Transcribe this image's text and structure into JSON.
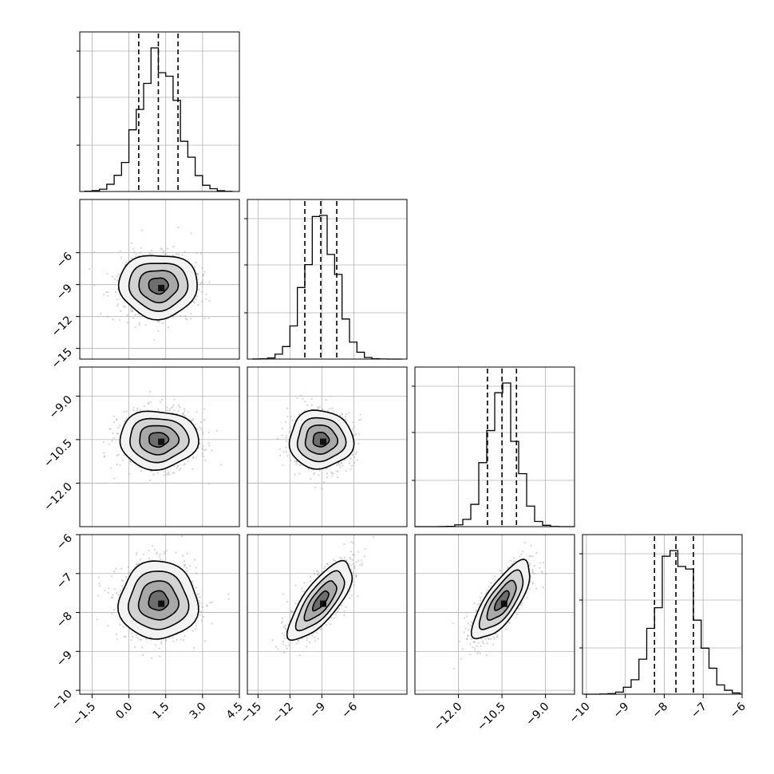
{
  "chart_data": {
    "type": "corner",
    "grid": true,
    "n_params": 4,
    "params": [
      {
        "name": "",
        "range": [
          -2.0,
          4.5
        ],
        "ticks": [
          -1.5,
          0.0,
          1.5,
          3.0,
          4.5
        ],
        "tick_labels": [
          "−1.5",
          "0.0",
          "1.5",
          "3.0",
          "4.5"
        ],
        "quantiles": [
          0.4,
          1.2,
          2.0
        ],
        "hist_mean": 1.2,
        "hist_sd": 0.8,
        "hist_edges_start": -1.8,
        "hist_bin_width": 0.3,
        "hist_bins": 20
      },
      {
        "name": "",
        "range": [
          -16.0,
          -1.0
        ],
        "ticks": [
          -15,
          -12,
          -9,
          -6
        ],
        "tick_labels": [
          "−15",
          "−12",
          "−9",
          "−6"
        ],
        "quantiles": [
          -10.6,
          -9.1,
          -7.6
        ],
        "hist_mean": -9.1,
        "hist_sd": 1.5,
        "hist_edges_start": -15.5,
        "hist_bin_width": 0.7,
        "hist_bins": 20
      },
      {
        "name": "",
        "range": [
          -13.5,
          -8.0
        ],
        "ticks": [
          -12.0,
          -10.5,
          -9.0
        ],
        "tick_labels": [
          "−12.0",
          "−10.5",
          "−9.0"
        ],
        "quantiles": [
          -11.0,
          -10.5,
          -10.0
        ],
        "hist_mean": -10.5,
        "hist_sd": 0.5,
        "hist_edges_start": -13.5,
        "hist_bin_width": 0.275,
        "hist_bins": 20
      },
      {
        "name": "",
        "range": [
          -10.1,
          -6.0
        ],
        "ticks": [
          -10,
          -9,
          -8,
          -7,
          -6
        ],
        "tick_labels": [
          "−10",
          "−9",
          "−8",
          "−7",
          "−6"
        ],
        "quantiles": [
          -8.25,
          -7.7,
          -7.25
        ],
        "hist_mean": -7.7,
        "hist_sd": 0.5,
        "hist_edges_start": -10.05,
        "hist_bin_width": 0.2,
        "hist_bins": 20
      }
    ],
    "row_axis_ticks": {
      "1": {
        "ticks": [
          -15,
          -12,
          -9,
          -6
        ],
        "labels": [
          "−15",
          "−12",
          "−9",
          "−6"
        ]
      },
      "2": {
        "ticks": [
          -12.0,
          -10.5,
          -9.0
        ],
        "labels": [
          "−12.0",
          "−10.5",
          "−9.0"
        ]
      },
      "3": {
        "ticks": [
          -10,
          -9,
          -8,
          -7,
          -6
        ],
        "labels": [
          "−10",
          "−9",
          "−8",
          "−7",
          "−6"
        ]
      }
    },
    "pairs": [
      {
        "row": 1,
        "col": 0,
        "center": [
          1.2,
          -9.1
        ],
        "spread": [
          0.8,
          1.5
        ],
        "rho": 0.0
      },
      {
        "row": 2,
        "col": 0,
        "center": [
          1.2,
          -10.5
        ],
        "spread": [
          0.8,
          0.5
        ],
        "rho": 0.0
      },
      {
        "row": 2,
        "col": 1,
        "center": [
          -9.1,
          -10.5
        ],
        "spread": [
          1.5,
          0.5
        ],
        "rho": 0.0
      },
      {
        "row": 3,
        "col": 0,
        "center": [
          1.2,
          -7.7
        ],
        "spread": [
          0.8,
          0.5
        ],
        "rho": 0.0
      },
      {
        "row": 3,
        "col": 1,
        "center": [
          -9.1,
          -7.7
        ],
        "spread": [
          1.5,
          0.5
        ],
        "rho": 0.75
      },
      {
        "row": 3,
        "col": 2,
        "center": [
          -10.5,
          -7.7
        ],
        "spread": [
          0.5,
          0.5
        ],
        "rho": 0.75
      }
    ],
    "contour_levels_sigma": [
      0.5,
      1.0,
      1.5,
      2.0
    ],
    "colors": {
      "line": "#000000",
      "scatter": "#9e9e9e",
      "grid": "#b0b0b0"
    }
  }
}
